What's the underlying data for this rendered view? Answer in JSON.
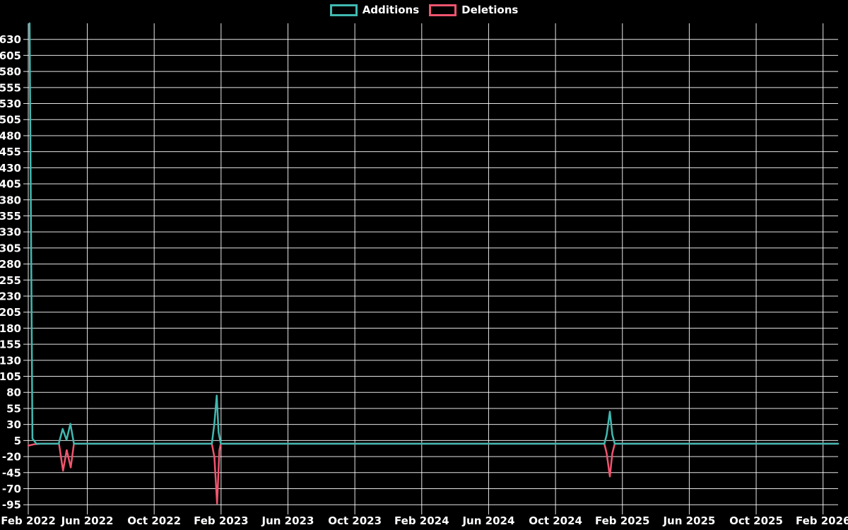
{
  "legend": {
    "items": [
      {
        "label": "Additions",
        "color": "#41b9b1"
      },
      {
        "label": "Deletions",
        "color": "#f0556f"
      }
    ]
  },
  "chart_data": {
    "type": "line",
    "title": "",
    "xlabel": "",
    "ylabel": "",
    "grid": true,
    "legend_position": "top",
    "background_color": "#000000",
    "grid_color": "#ffffff",
    "text_color": "#ffffff",
    "x_axis": {
      "unit": "months_since_feb_2022",
      "range": [
        0.47,
        48.9
      ],
      "ticks": [
        {
          "t": 0.47,
          "label": "Feb 2022"
        },
        {
          "t": 4,
          "label": "Jun 2022"
        },
        {
          "t": 8,
          "label": "Oct 2022"
        },
        {
          "t": 12,
          "label": "Feb 2023"
        },
        {
          "t": 16,
          "label": "Jun 2023"
        },
        {
          "t": 20,
          "label": "Oct 2023"
        },
        {
          "t": 24,
          "label": "Feb 2024"
        },
        {
          "t": 28,
          "label": "Jun 2024"
        },
        {
          "t": 32,
          "label": "Oct 2024"
        },
        {
          "t": 36,
          "label": "Feb 2025"
        },
        {
          "t": 40,
          "label": "Jun 2025"
        },
        {
          "t": 44,
          "label": "Oct 2025"
        },
        {
          "t": 48,
          "label": "Feb 2026"
        }
      ]
    },
    "y_axis": {
      "range": [
        -102.5,
        655
      ],
      "tick_min": -95,
      "tick_max": 630,
      "tick_step": 25
    },
    "series": [
      {
        "name": "Additions",
        "color": "#41b9b1",
        "points": [
          [
            0.55,
            655
          ],
          [
            0.72,
            8
          ],
          [
            0.95,
            0
          ],
          [
            2.29,
            0
          ],
          [
            2.53,
            23
          ],
          [
            2.76,
            6
          ],
          [
            2.99,
            31
          ],
          [
            3.2,
            0
          ],
          [
            11.45,
            0
          ],
          [
            11.6,
            32
          ],
          [
            11.74,
            75
          ],
          [
            11.85,
            18
          ],
          [
            11.98,
            0
          ],
          [
            34.92,
            0
          ],
          [
            35.06,
            14
          ],
          [
            35.25,
            50
          ],
          [
            35.4,
            14
          ],
          [
            35.54,
            0
          ],
          [
            48.9,
            0
          ]
        ]
      },
      {
        "name": "Deletions",
        "color": "#f0556f",
        "points": [
          [
            0.47,
            -3
          ],
          [
            0.8,
            -1
          ],
          [
            1.2,
            0
          ],
          [
            2.31,
            0
          ],
          [
            2.55,
            -42
          ],
          [
            2.77,
            -10
          ],
          [
            3.01,
            -37
          ],
          [
            3.2,
            0
          ],
          [
            11.45,
            0
          ],
          [
            11.6,
            -21
          ],
          [
            11.76,
            -93
          ],
          [
            11.9,
            -10
          ],
          [
            11.98,
            0
          ],
          [
            34.92,
            0
          ],
          [
            35.06,
            -15
          ],
          [
            35.25,
            -51
          ],
          [
            35.4,
            -15
          ],
          [
            35.54,
            0
          ],
          [
            48.9,
            0
          ]
        ]
      }
    ]
  }
}
